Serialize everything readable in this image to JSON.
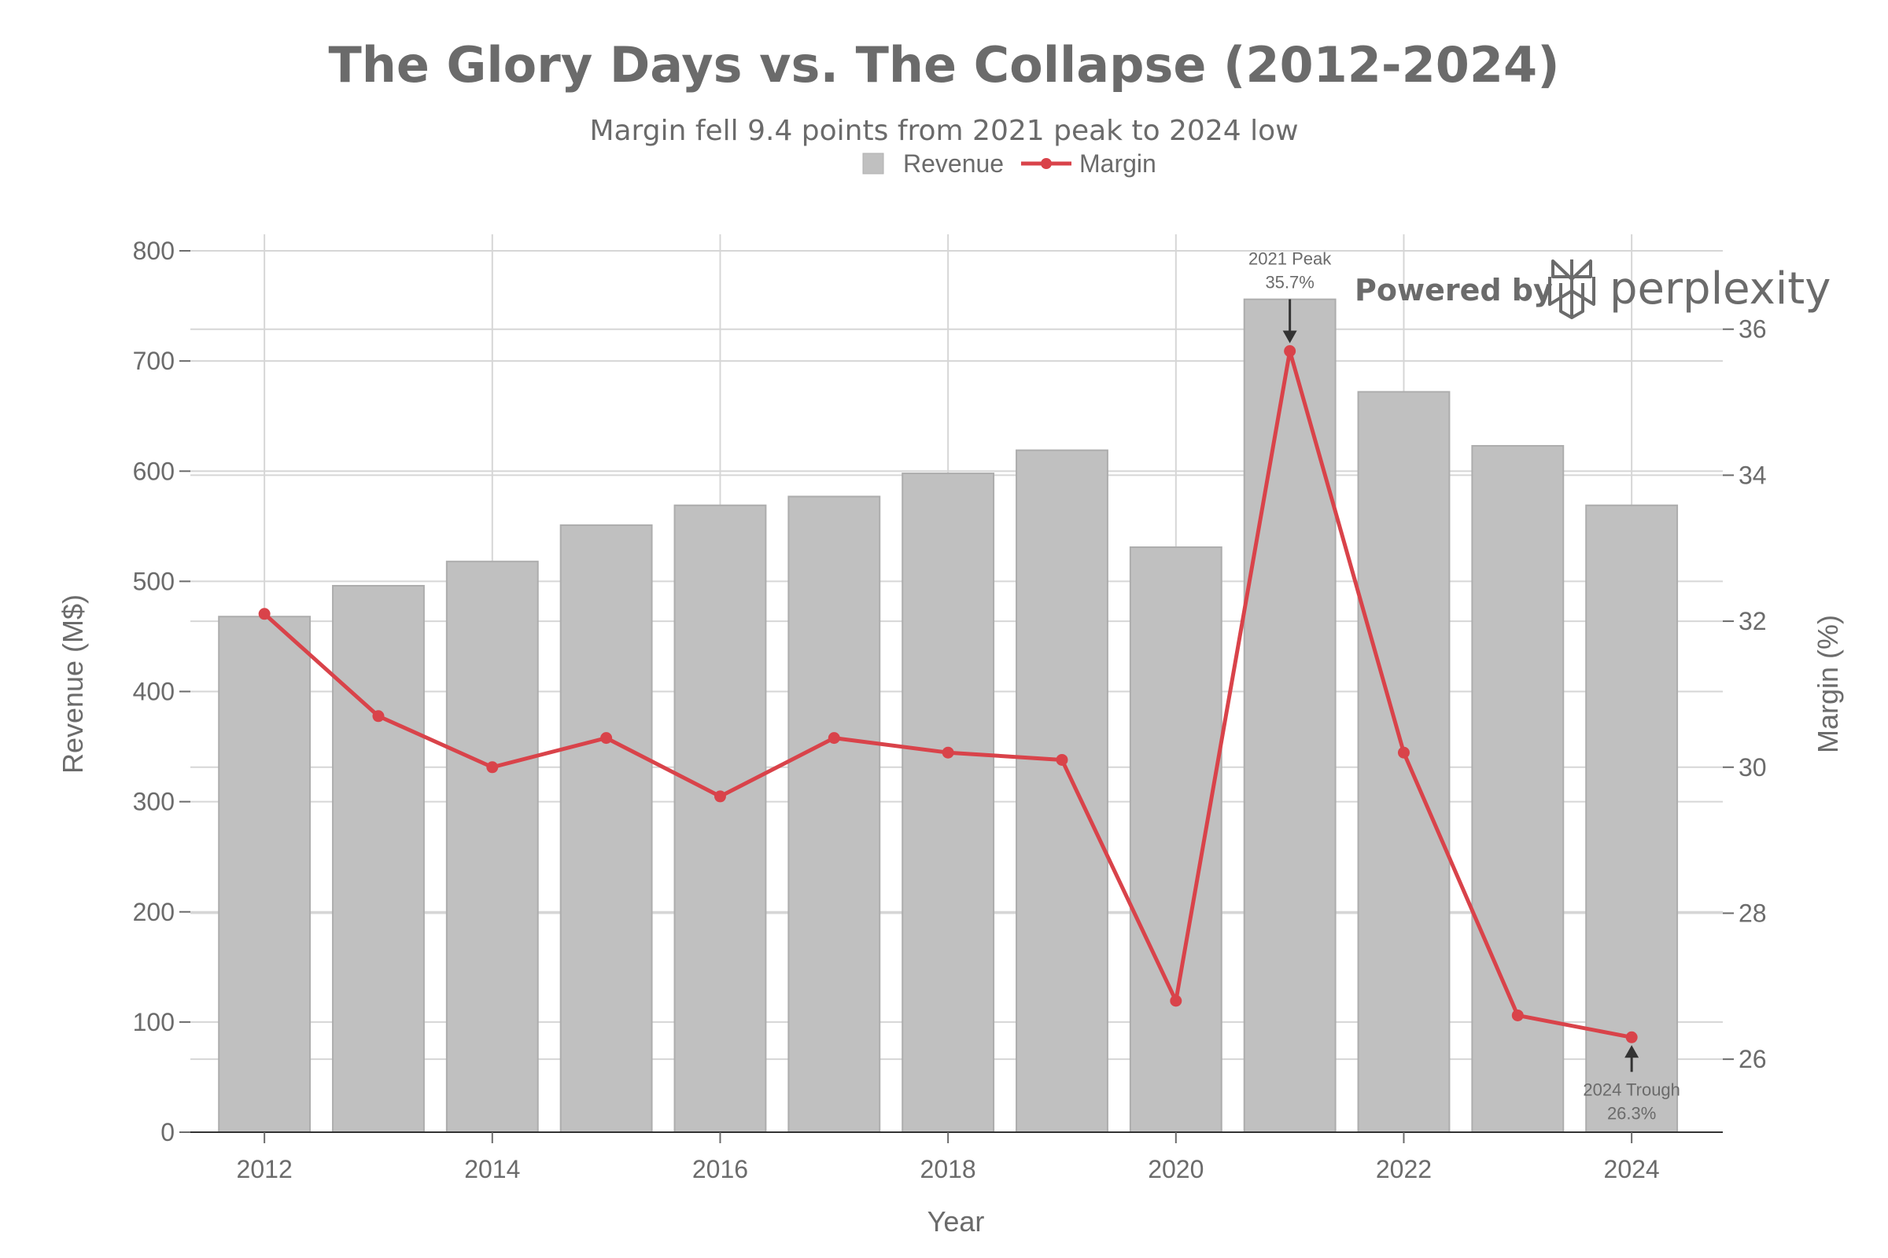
{
  "chart_data": {
    "type": "bar",
    "title": "The Glory Days vs. The Collapse (2012-2024)",
    "subtitle": "Margin fell 9.4 points from 2021 peak to 2024 low",
    "xlabel": "Year",
    "ylabel": "Revenue (M$)",
    "y2label": "Margin (%)",
    "x": [
      2012,
      2013,
      2014,
      2015,
      2016,
      2017,
      2018,
      2019,
      2020,
      2021,
      2022,
      2023,
      2024
    ],
    "xticks": [
      "2012",
      "2014",
      "2016",
      "2018",
      "2020",
      "2022",
      "2024"
    ],
    "yticks": [
      "0",
      "100",
      "200",
      "300",
      "400",
      "500",
      "600",
      "700",
      "800"
    ],
    "y2ticks": [
      "26",
      "28",
      "30",
      "32",
      "34",
      "36"
    ],
    "ylim": [
      0,
      815
    ],
    "y2lim": [
      25,
      37.3
    ],
    "grid": true,
    "legend_position": "top-center",
    "series": [
      {
        "name": "Revenue",
        "kind": "bar",
        "axis": "left",
        "color": "#c0c0c0",
        "values": [
          468,
          496,
          518,
          551,
          569,
          577,
          598,
          619,
          531,
          756,
          672,
          623,
          569
        ]
      },
      {
        "name": "Margin",
        "kind": "line",
        "axis": "right",
        "color": "#d9434a",
        "values": [
          32.1,
          30.7,
          30.0,
          30.4,
          29.6,
          30.4,
          30.2,
          30.1,
          26.8,
          35.7,
          30.2,
          26.6,
          26.3
        ]
      }
    ],
    "annotations": [
      {
        "year": 2021,
        "value": 35.7,
        "line1": "2021 Peak",
        "line2": "35.7%",
        "position": "above"
      },
      {
        "year": 2024,
        "value": 26.3,
        "line1": "2024 Trough",
        "line2": "26.3%",
        "position": "below"
      }
    ]
  },
  "watermark": {
    "powered_by": "Powered by",
    "brand": "perplexity"
  }
}
